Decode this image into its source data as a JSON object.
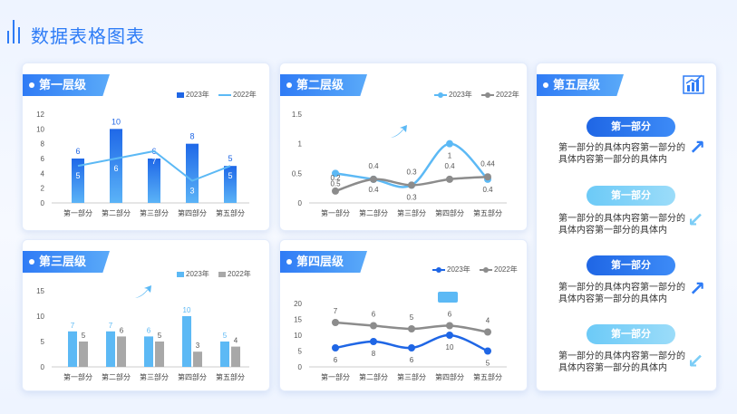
{
  "page": {
    "title": "数据表格图表"
  },
  "panels": {
    "p1": {
      "title": "第一层级"
    },
    "p2": {
      "title": "第二层级"
    },
    "p3": {
      "title": "第三层级"
    },
    "p4": {
      "title": "第四层级"
    },
    "p5": {
      "title": "第五层级"
    }
  },
  "sidebar": {
    "sections": [
      {
        "label": "第一部分",
        "text": "第一部分的具体内容第一部分的具体内容第一部分的具体内",
        "style": "dark",
        "arrow": "up"
      },
      {
        "label": "第一部分",
        "text": "第一部分的具体内容第一部分的具体内容第一部分的具体内",
        "style": "light",
        "arrow": "down"
      },
      {
        "label": "第一部分",
        "text": "第一部分的具体内容第一部分的具体内容第一部分的具体内",
        "style": "dark",
        "arrow": "up"
      },
      {
        "label": "第一部分",
        "text": "第一部分的具体内容第一部分的具体内容第一部分的具体内",
        "style": "light",
        "arrow": "down"
      }
    ]
  },
  "colors": {
    "accent": "#2e7cf6",
    "light": "#5cb9f5",
    "gray": "#8c8c8c",
    "dark_blue": "#1f66e5"
  },
  "chart_data": [
    {
      "type": "bar",
      "categories": [
        "第一部分",
        "第二部分",
        "第三部分",
        "第四部分",
        "第五部分"
      ],
      "series": [
        {
          "name": "2023年",
          "values": [
            6,
            10,
            6,
            8,
            5
          ],
          "kind": "bar"
        },
        {
          "name": "2022年",
          "values": [
            5,
            6,
            7,
            3,
            5
          ],
          "kind": "line"
        }
      ],
      "ylim": [
        0,
        12
      ],
      "yticks": [
        0,
        2,
        4,
        6,
        8,
        10,
        12
      ]
    },
    {
      "type": "line",
      "categories": [
        "第一部分",
        "第二部分",
        "第三部分",
        "第四部分",
        "第五部分"
      ],
      "series": [
        {
          "name": "2023年",
          "values": [
            0.5,
            0.4,
            0.3,
            1,
            0.4
          ]
        },
        {
          "name": "2022年",
          "values": [
            0.2,
            0.4,
            0.3,
            0.4,
            0.44
          ]
        }
      ],
      "ylim": [
        0,
        1.5
      ],
      "yticks": [
        0,
        0.5,
        1,
        1.5
      ]
    },
    {
      "type": "bar",
      "categories": [
        "第一部分",
        "第二部分",
        "第三部分",
        "第四部分",
        "第五部分"
      ],
      "series": [
        {
          "name": "2023年",
          "values": [
            7,
            7,
            6,
            10,
            5
          ]
        },
        {
          "name": "2022年",
          "values": [
            5,
            6,
            5,
            3,
            4
          ]
        }
      ],
      "ylim": [
        0,
        15
      ],
      "yticks": [
        0,
        5,
        10,
        15
      ]
    },
    {
      "type": "line",
      "categories": [
        "第一部分",
        "第二部分",
        "第三部分",
        "第四部分",
        "第五部分"
      ],
      "series": [
        {
          "name": "2023年",
          "values": [
            6,
            8,
            6,
            10,
            5
          ]
        },
        {
          "name": "2022年",
          "values": [
            7,
            6,
            5,
            6,
            4
          ]
        }
      ],
      "ylim": [
        0,
        20
      ],
      "yticks": [
        0,
        5,
        10,
        15,
        20
      ]
    }
  ]
}
